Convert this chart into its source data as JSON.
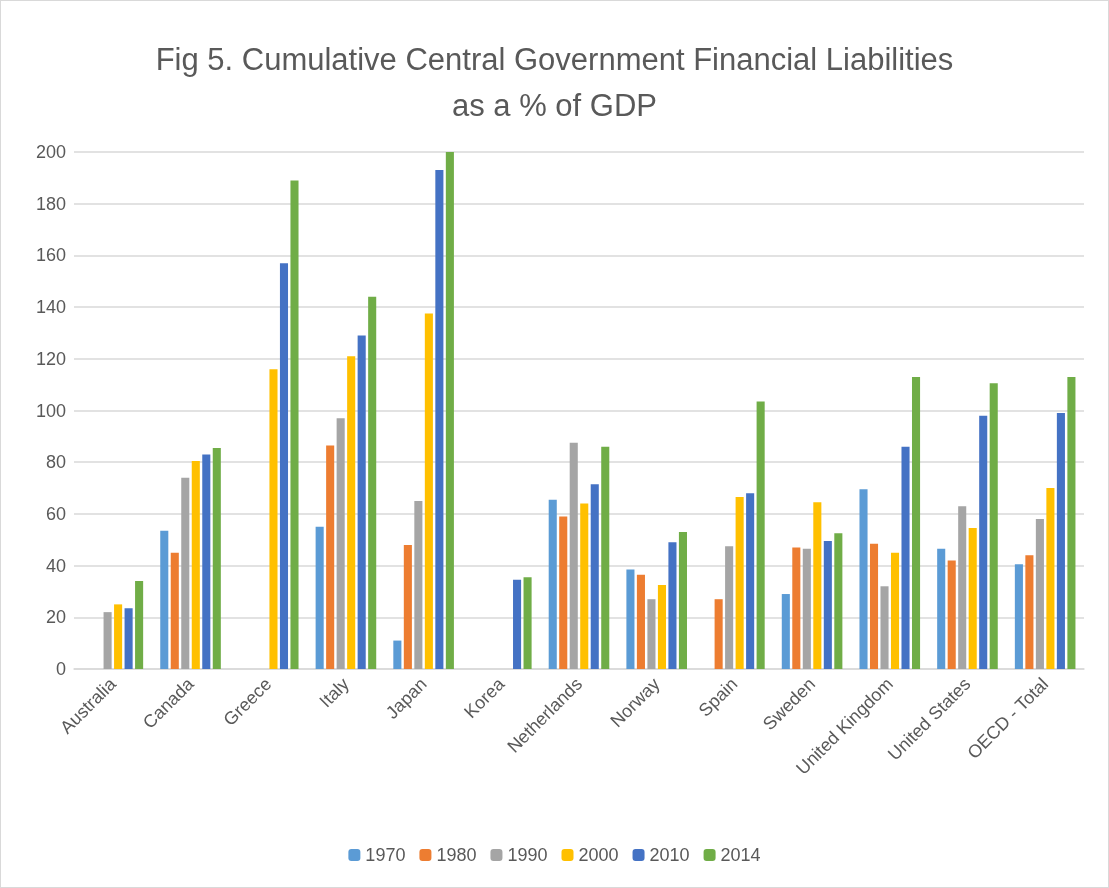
{
  "chart_data": {
    "type": "bar",
    "title": "Fig 5. Cumulative Central Government Financial Liabilities\nas a % of GDP",
    "categories": [
      "Australia",
      "Canada",
      "Greece",
      "Italy",
      "Japan",
      "Korea",
      "Netherlands",
      "Norway",
      "Spain",
      "Sweden",
      "United Kingdom",
      "United States",
      "OECD - Total"
    ],
    "series": [
      {
        "name": "1970",
        "color": "#5b9bd5",
        "values": [
          null,
          53.5,
          null,
          55,
          11,
          null,
          65.5,
          38.5,
          null,
          29,
          69.5,
          46.5,
          40.5
        ]
      },
      {
        "name": "1980",
        "color": "#ed7d31",
        "values": [
          null,
          45,
          null,
          86.5,
          48,
          null,
          59,
          36.5,
          27,
          47,
          48.5,
          42,
          44
        ]
      },
      {
        "name": "1990",
        "color": "#a5a5a5",
        "values": [
          22,
          74,
          null,
          97,
          65,
          null,
          87.5,
          27,
          47.5,
          46.5,
          32,
          63,
          58
        ]
      },
      {
        "name": "2000",
        "color": "#ffc000",
        "values": [
          25,
          80.5,
          116,
          121,
          137.5,
          null,
          64,
          32.5,
          66.5,
          64.5,
          45,
          54.5,
          70
        ]
      },
      {
        "name": "2010",
        "color": "#4472c4",
        "values": [
          23.5,
          83,
          157,
          129,
          193,
          34.5,
          71.5,
          49,
          68,
          49.5,
          86,
          98,
          99
        ]
      },
      {
        "name": "2014",
        "color": "#70ad47",
        "values": [
          34,
          85.5,
          189,
          144,
          200,
          35.5,
          86,
          53,
          103.5,
          52.5,
          113,
          110.5,
          113
        ]
      }
    ],
    "ylim": [
      0,
      200
    ],
    "yticks": [
      0,
      20,
      40,
      60,
      80,
      100,
      120,
      140,
      160,
      180,
      200
    ],
    "grid": "y",
    "legend": "bottom"
  }
}
